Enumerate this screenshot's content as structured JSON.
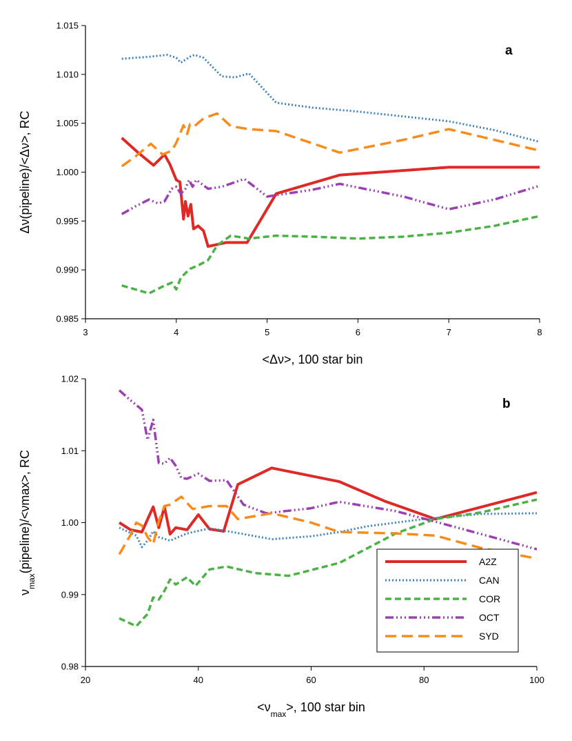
{
  "chart_data": [
    {
      "type": "line",
      "panel_label": "a",
      "xlabel": "<Δν>, 100 star bin",
      "ylabel": "Δν(pipeline)/<Δν>, RC",
      "xlim": [
        3,
        8
      ],
      "ylim": [
        0.985,
        1.015
      ],
      "xticks": [
        3,
        4,
        5,
        6,
        7,
        8
      ],
      "xtick_labels": [
        "3",
        "4",
        "5",
        "6",
        "7",
        "8"
      ],
      "yticks": [
        0.985,
        0.99,
        0.995,
        1.0,
        1.005,
        1.01,
        1.015
      ],
      "ytick_labels": [
        "0.985",
        "0.990",
        "0.995",
        "1.000",
        "1.005",
        "1.010",
        "1.015"
      ],
      "grid": false,
      "series": [
        {
          "name": "A2Z",
          "x": [
            3.4,
            3.58,
            3.75,
            3.87,
            3.93,
            4.0,
            4.04,
            4.08,
            4.1,
            4.13,
            4.16,
            4.19,
            4.24,
            4.3,
            4.35,
            4.55,
            4.78,
            5.1,
            5.8,
            7.0,
            8.0
          ],
          "y": [
            1.0035,
            1.002,
            1.0007,
            1.0018,
            1.0008,
            0.9992,
            0.999,
            0.9952,
            0.997,
            0.9955,
            0.9967,
            0.9942,
            0.9945,
            0.994,
            0.9924,
            0.9928,
            0.9928,
            0.9978,
            0.9997,
            1.0005,
            1.0005
          ]
        },
        {
          "name": "CAN",
          "x": [
            3.4,
            3.55,
            3.7,
            3.9,
            4.0,
            4.05,
            4.15,
            4.2,
            4.3,
            4.5,
            4.65,
            4.8,
            5.1,
            5.5,
            6.0,
            6.5,
            7.0,
            7.5,
            8.0
          ],
          "y": [
            1.0116,
            1.0117,
            1.0118,
            1.012,
            1.0117,
            1.0112,
            1.0118,
            1.012,
            1.0117,
            1.0098,
            1.0097,
            1.0101,
            1.0071,
            1.0066,
            1.0062,
            1.0057,
            1.0052,
            1.0043,
            1.0031
          ]
        },
        {
          "name": "COR",
          "x": [
            3.4,
            3.55,
            3.7,
            3.85,
            3.95,
            4.0,
            4.05,
            4.15,
            4.25,
            4.35,
            4.45,
            4.6,
            4.8,
            5.1,
            5.5,
            6.0,
            6.5,
            7.0,
            7.5,
            8.0
          ],
          "y": [
            0.9884,
            0.988,
            0.9876,
            0.9883,
            0.9887,
            0.988,
            0.9892,
            0.9901,
            0.9905,
            0.991,
            0.9925,
            0.9935,
            0.9932,
            0.9935,
            0.9934,
            0.9932,
            0.9934,
            0.9938,
            0.9945,
            0.9955
          ]
        },
        {
          "name": "OCT",
          "x": [
            3.4,
            3.55,
            3.7,
            3.8,
            3.87,
            3.95,
            4.0,
            4.05,
            4.1,
            4.14,
            4.18,
            4.22,
            4.35,
            4.5,
            4.75,
            5.0,
            5.5,
            5.8,
            6.5,
            7.0,
            7.5,
            8.0
          ],
          "y": [
            0.9957,
            0.9965,
            0.9972,
            0.9968,
            0.997,
            0.9983,
            0.9985,
            0.9978,
            0.9983,
            0.9992,
            0.9985,
            0.9992,
            0.9983,
            0.9985,
            0.9993,
            0.9975,
            0.9982,
            0.9988,
            0.9975,
            0.9962,
            0.9972,
            0.9986
          ]
        },
        {
          "name": "SYD",
          "x": [
            3.4,
            3.55,
            3.72,
            3.85,
            3.95,
            4.0,
            4.08,
            4.12,
            4.15,
            4.2,
            4.3,
            4.45,
            4.6,
            4.8,
            5.1,
            5.8,
            6.5,
            7.0,
            7.5,
            8.0
          ],
          "y": [
            1.0006,
            1.0016,
            1.0029,
            1.0018,
            1.0022,
            1.003,
            1.0048,
            1.0039,
            1.0049,
            1.0047,
            1.0055,
            1.006,
            1.0047,
            1.0044,
            1.0042,
            1.002,
            1.0033,
            1.0044,
            1.0033,
            1.0022
          ]
        }
      ]
    },
    {
      "type": "line",
      "panel_label": "b",
      "xlabel": "<νmax>, 100 star bin",
      "ylabel": "νmax(pipeline)/<νmax>, RC",
      "xlim": [
        20,
        100
      ],
      "ylim": [
        0.98,
        1.02
      ],
      "xticks": [
        20,
        40,
        60,
        80,
        100
      ],
      "xtick_labels": [
        "20",
        "40",
        "60",
        "80",
        "100"
      ],
      "yticks": [
        0.98,
        0.99,
        1.0,
        1.01,
        1.02
      ],
      "ytick_labels": [
        "0.98",
        "0.99",
        "1.00",
        "1.01",
        "1.02"
      ],
      "grid": false,
      "legend_position": "bottom-right",
      "series": [
        {
          "name": "A2Z",
          "x": [
            26,
            28,
            30,
            32,
            33,
            34,
            35,
            36,
            38,
            40,
            42,
            44.5,
            47,
            53,
            65,
            73,
            82,
            100
          ],
          "y": [
            1.0,
            0.999,
            0.9987,
            1.0022,
            0.9993,
            1.0022,
            0.9984,
            0.9993,
            0.999,
            1.0011,
            0.9991,
            0.9988,
            1.0053,
            1.0076,
            1.0057,
            1.003,
            1.0005,
            1.0042
          ]
        },
        {
          "name": "CAN",
          "x": [
            26,
            29,
            30,
            31,
            32,
            33,
            35,
            38,
            42,
            46,
            53,
            60,
            65,
            70,
            80,
            90,
            100
          ],
          "y": [
            0.9993,
            0.9982,
            0.9966,
            0.9975,
            0.9988,
            0.998,
            0.9975,
            0.9985,
            0.9992,
            0.9987,
            0.9977,
            0.9981,
            0.9987,
            0.9995,
            1.0005,
            1.0012,
            1.0013
          ]
        },
        {
          "name": "COR",
          "x": [
            26,
            29,
            31,
            32,
            33,
            34,
            35,
            36,
            38,
            39.5,
            42,
            45,
            50,
            56,
            65,
            75,
            82,
            90,
            100
          ],
          "y": [
            0.9867,
            0.9856,
            0.9873,
            0.9896,
            0.9893,
            0.9905,
            0.9921,
            0.9914,
            0.9924,
            0.9912,
            0.9935,
            0.9939,
            0.993,
            0.9926,
            0.9944,
            0.9985,
            1.0005,
            1.0014,
            1.0032
          ]
        },
        {
          "name": "OCT",
          "x": [
            26,
            28,
            30,
            31,
            32,
            33,
            34,
            35,
            36,
            37,
            38,
            40,
            42,
            45,
            48,
            52,
            60,
            65,
            75,
            85,
            100
          ],
          "y": [
            1.0184,
            1.017,
            1.0157,
            1.0115,
            1.0143,
            1.0083,
            1.0082,
            1.009,
            1.0079,
            1.0062,
            1.0061,
            1.0068,
            1.0058,
            1.0059,
            1.0025,
            1.0013,
            1.002,
            1.0029,
            1.0016,
            0.9995,
            0.9963
          ]
        },
        {
          "name": "SYD",
          "x": [
            26,
            28,
            29,
            30,
            31,
            32,
            33,
            34,
            35,
            37,
            39,
            42,
            45,
            47,
            53,
            60,
            65,
            75,
            82,
            90,
            100
          ],
          "y": [
            0.9956,
            0.9983,
            1.0,
            0.9996,
            0.998,
            0.997,
            1.0002,
            1.0023,
            1.0025,
            1.0036,
            1.0019,
            1.0023,
            1.0023,
            1.0005,
            1.0013,
            1.0,
            0.9987,
            0.9985,
            0.9982,
            0.9965,
            0.995
          ]
        }
      ]
    }
  ],
  "series_styles": {
    "A2Z": {
      "color": "#dd2a27",
      "width": 4,
      "dash": ""
    },
    "CAN": {
      "color": "#3c80bd",
      "width": 3,
      "dash": "2 3"
    },
    "COR": {
      "color": "#4bb245",
      "width": 3.5,
      "dash": "9 5"
    },
    "OCT": {
      "color": "#9a40b0",
      "width": 3.5,
      "dash": "12 4 2 4 2 4 2 4"
    },
    "SYD": {
      "color": "#f98b1b",
      "width": 3.5,
      "dash": "16 8"
    }
  },
  "legend": {
    "items": [
      "A2Z",
      "CAN",
      "COR",
      "OCT",
      "SYD"
    ]
  }
}
